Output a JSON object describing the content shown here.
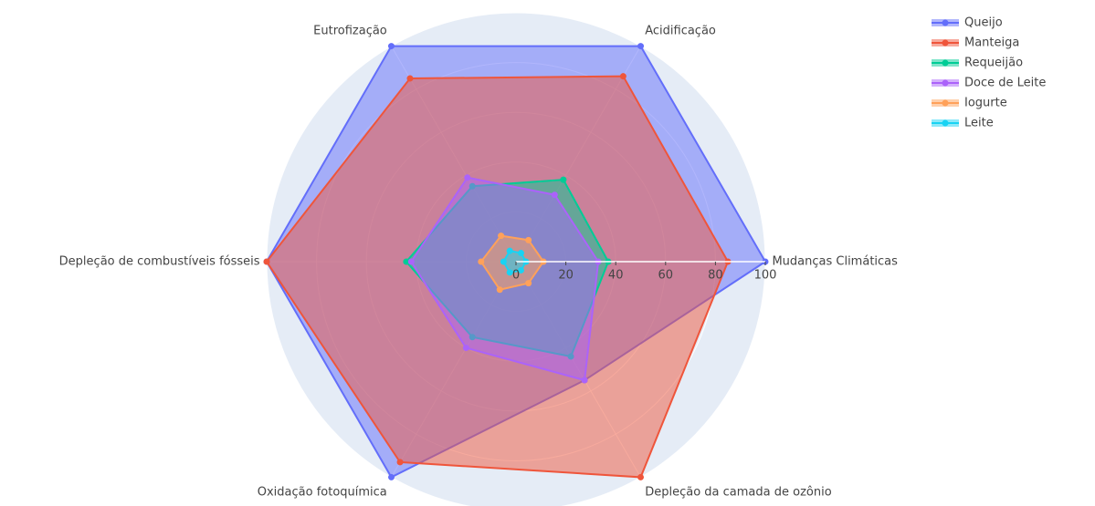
{
  "chart_data": {
    "type": "radar",
    "categories": [
      "Mudanças Climáticas",
      "Acidificação",
      "Eutrofização",
      "Depleção de combustíveis fósseis",
      "Oxidação fotoquímica",
      "Depleção da camada de ozônio"
    ],
    "series": [
      {
        "name": "Queijo",
        "color": "#636efa",
        "values": [
          100,
          100,
          100,
          100,
          100,
          55
        ]
      },
      {
        "name": "Manteiga",
        "color": "#ef553b",
        "values": [
          85,
          86,
          85,
          100,
          93,
          100
        ]
      },
      {
        "name": "Requeijão",
        "color": "#00cc96",
        "values": [
          37,
          38,
          35,
          44,
          35,
          44
        ]
      },
      {
        "name": "Doce de Leite",
        "color": "#ab63fa",
        "values": [
          33,
          31,
          39,
          42,
          40,
          55
        ]
      },
      {
        "name": "Iogurte",
        "color": "#ffa15a",
        "values": [
          11,
          10,
          12,
          14,
          13,
          10
        ]
      },
      {
        "name": "Leite",
        "color": "#19d3f3",
        "values": [
          4,
          4,
          5,
          5,
          5,
          4
        ]
      }
    ],
    "rlim": [
      0,
      100
    ],
    "rticks": [
      0,
      20,
      40,
      60,
      80,
      100
    ],
    "grid": true,
    "legend": "top-right"
  }
}
